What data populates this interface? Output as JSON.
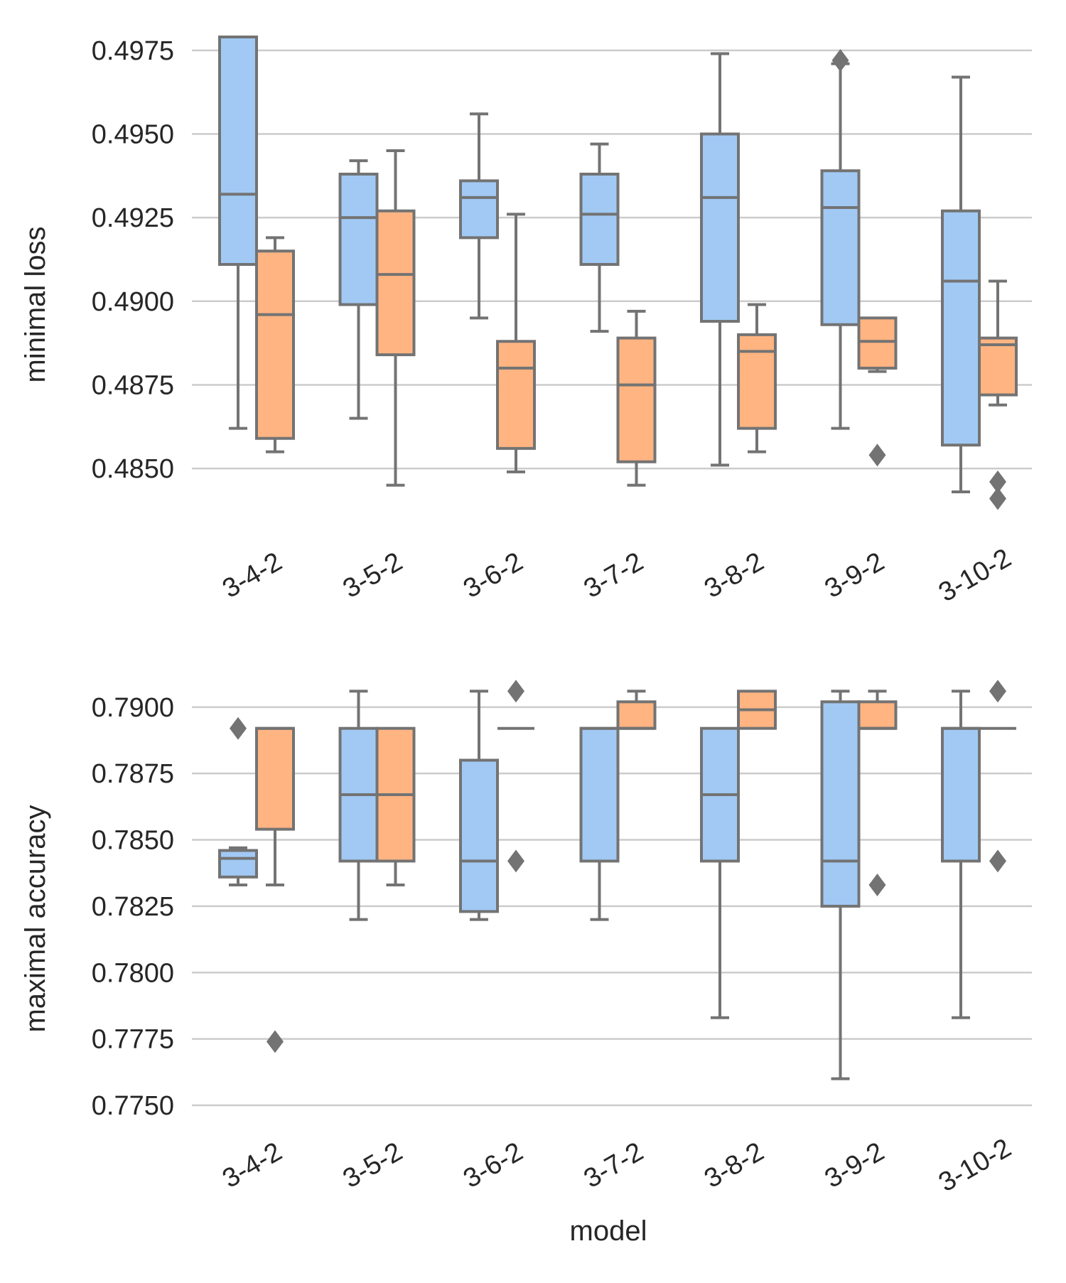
{
  "chart_data": [
    {
      "type": "box",
      "ylabel": "minimal loss",
      "xlabel": "",
      "ylim": [
        0.4836,
        0.4979
      ],
      "yticks": [
        "0.4850",
        "0.4875",
        "0.4900",
        "0.4925",
        "0.4950",
        "0.4975"
      ],
      "ytick_values": [
        0.485,
        0.4875,
        0.49,
        0.4925,
        0.495,
        0.4975
      ],
      "categories": [
        "3-4-2",
        "3-5-2",
        "3-6-2",
        "3-7-2",
        "3-8-2",
        "3-9-2",
        "3-10-2"
      ],
      "grid": "horizontal",
      "series": [
        {
          "color": "#a1c9f4",
          "boxes": [
            {
              "whislo": 0.4862,
              "q1": 0.4911,
              "med": 0.4932,
              "q3": 0.4982,
              "whishi": 0.4982,
              "fliers": []
            },
            {
              "whislo": 0.4865,
              "q1": 0.4899,
              "med": 0.4925,
              "q3": 0.4938,
              "whishi": 0.4942,
              "fliers": []
            },
            {
              "whislo": 0.4895,
              "q1": 0.4919,
              "med": 0.4931,
              "q3": 0.4936,
              "whishi": 0.4956,
              "fliers": []
            },
            {
              "whislo": 0.4891,
              "q1": 0.4911,
              "med": 0.4926,
              "q3": 0.4938,
              "whishi": 0.4947,
              "fliers": []
            },
            {
              "whislo": 0.4851,
              "q1": 0.4894,
              "med": 0.4931,
              "q3": 0.495,
              "whishi": 0.4974,
              "fliers": []
            },
            {
              "whislo": 0.4862,
              "q1": 0.4893,
              "med": 0.4928,
              "q3": 0.4939,
              "whishi": 0.4971,
              "fliers": [
                0.4972
              ]
            },
            {
              "whislo": 0.4843,
              "q1": 0.4857,
              "med": 0.4906,
              "q3": 0.4927,
              "whishi": 0.4967,
              "fliers": []
            }
          ]
        },
        {
          "color": "#ffb482",
          "boxes": [
            {
              "whislo": 0.4855,
              "q1": 0.4859,
              "med": 0.4896,
              "q3": 0.4915,
              "whishi": 0.4919,
              "fliers": []
            },
            {
              "whislo": 0.4845,
              "q1": 0.4884,
              "med": 0.4908,
              "q3": 0.4927,
              "whishi": 0.4945,
              "fliers": []
            },
            {
              "whislo": 0.4849,
              "q1": 0.4856,
              "med": 0.488,
              "q3": 0.4888,
              "whishi": 0.4926,
              "fliers": []
            },
            {
              "whislo": 0.4845,
              "q1": 0.4852,
              "med": 0.4875,
              "q3": 0.4889,
              "whishi": 0.4897,
              "fliers": []
            },
            {
              "whislo": 0.4855,
              "q1": 0.4862,
              "med": 0.4885,
              "q3": 0.489,
              "whishi": 0.4899,
              "fliers": []
            },
            {
              "whislo": 0.4879,
              "q1": 0.488,
              "med": 0.4888,
              "q3": 0.4895,
              "whishi": 0.4895,
              "fliers": [
                0.4854
              ]
            },
            {
              "whislo": 0.4869,
              "q1": 0.4872,
              "med": 0.4887,
              "q3": 0.4889,
              "whishi": 0.4906,
              "fliers": [
                0.4846,
                0.4841
              ]
            }
          ]
        }
      ]
    },
    {
      "type": "box",
      "ylabel": "maximal accuracy",
      "xlabel": "model",
      "ylim": [
        0.775,
        0.7912
      ],
      "yticks": [
        "0.7750",
        "0.7775",
        "0.7800",
        "0.7825",
        "0.7850",
        "0.7875",
        "0.7900"
      ],
      "ytick_values": [
        0.775,
        0.7775,
        0.78,
        0.7825,
        0.785,
        0.7875,
        0.79
      ],
      "categories": [
        "3-4-2",
        "3-5-2",
        "3-6-2",
        "3-7-2",
        "3-8-2",
        "3-9-2",
        "3-10-2"
      ],
      "grid": "horizontal",
      "series": [
        {
          "color": "#a1c9f4",
          "boxes": [
            {
              "whislo": 0.7833,
              "q1": 0.7836,
              "med": 0.7843,
              "q3": 0.7846,
              "whishi": 0.7847,
              "fliers": [
                0.7892
              ]
            },
            {
              "whislo": 0.782,
              "q1": 0.7842,
              "med": 0.7867,
              "q3": 0.7892,
              "whishi": 0.7906,
              "fliers": []
            },
            {
              "whislo": 0.782,
              "q1": 0.7823,
              "med": 0.7842,
              "q3": 0.788,
              "whishi": 0.7906,
              "fliers": []
            },
            {
              "whislo": 0.782,
              "q1": 0.7842,
              "med": 0.7892,
              "q3": 0.7892,
              "whishi": 0.7892,
              "fliers": []
            },
            {
              "whislo": 0.7783,
              "q1": 0.7842,
              "med": 0.7867,
              "q3": 0.7892,
              "whishi": 0.7892,
              "fliers": []
            },
            {
              "whislo": 0.776,
              "q1": 0.7825,
              "med": 0.7842,
              "q3": 0.7902,
              "whishi": 0.7906,
              "fliers": []
            },
            {
              "whislo": 0.7783,
              "q1": 0.7842,
              "med": 0.7892,
              "q3": 0.7892,
              "whishi": 0.7906,
              "fliers": []
            }
          ]
        },
        {
          "color": "#ffb482",
          "boxes": [
            {
              "whislo": 0.7833,
              "q1": 0.7854,
              "med": 0.7892,
              "q3": 0.7892,
              "whishi": 0.7892,
              "fliers": [
                0.7774
              ]
            },
            {
              "whislo": 0.7833,
              "q1": 0.7842,
              "med": 0.7867,
              "q3": 0.7892,
              "whishi": 0.7892,
              "fliers": []
            },
            {
              "whislo": 0.7892,
              "q1": 0.7892,
              "med": 0.7892,
              "q3": 0.7892,
              "whishi": 0.7892,
              "fliers": [
                0.7906,
                0.7842
              ]
            },
            {
              "whislo": 0.7892,
              "q1": 0.7892,
              "med": 0.7892,
              "q3": 0.7902,
              "whishi": 0.7906,
              "fliers": []
            },
            {
              "whislo": 0.7892,
              "q1": 0.7892,
              "med": 0.7899,
              "q3": 0.7906,
              "whishi": 0.7906,
              "fliers": []
            },
            {
              "whislo": 0.7892,
              "q1": 0.7892,
              "med": 0.7892,
              "q3": 0.7902,
              "whishi": 0.7906,
              "fliers": [
                0.7833
              ]
            },
            {
              "whislo": 0.7892,
              "q1": 0.7892,
              "med": 0.7892,
              "q3": 0.7892,
              "whishi": 0.7892,
              "fliers": [
                0.7906,
                0.7842
              ]
            }
          ]
        }
      ]
    }
  ],
  "style": {
    "grid_color": "#cccccc",
    "line_color": "#737373",
    "text_color": "#262626"
  }
}
